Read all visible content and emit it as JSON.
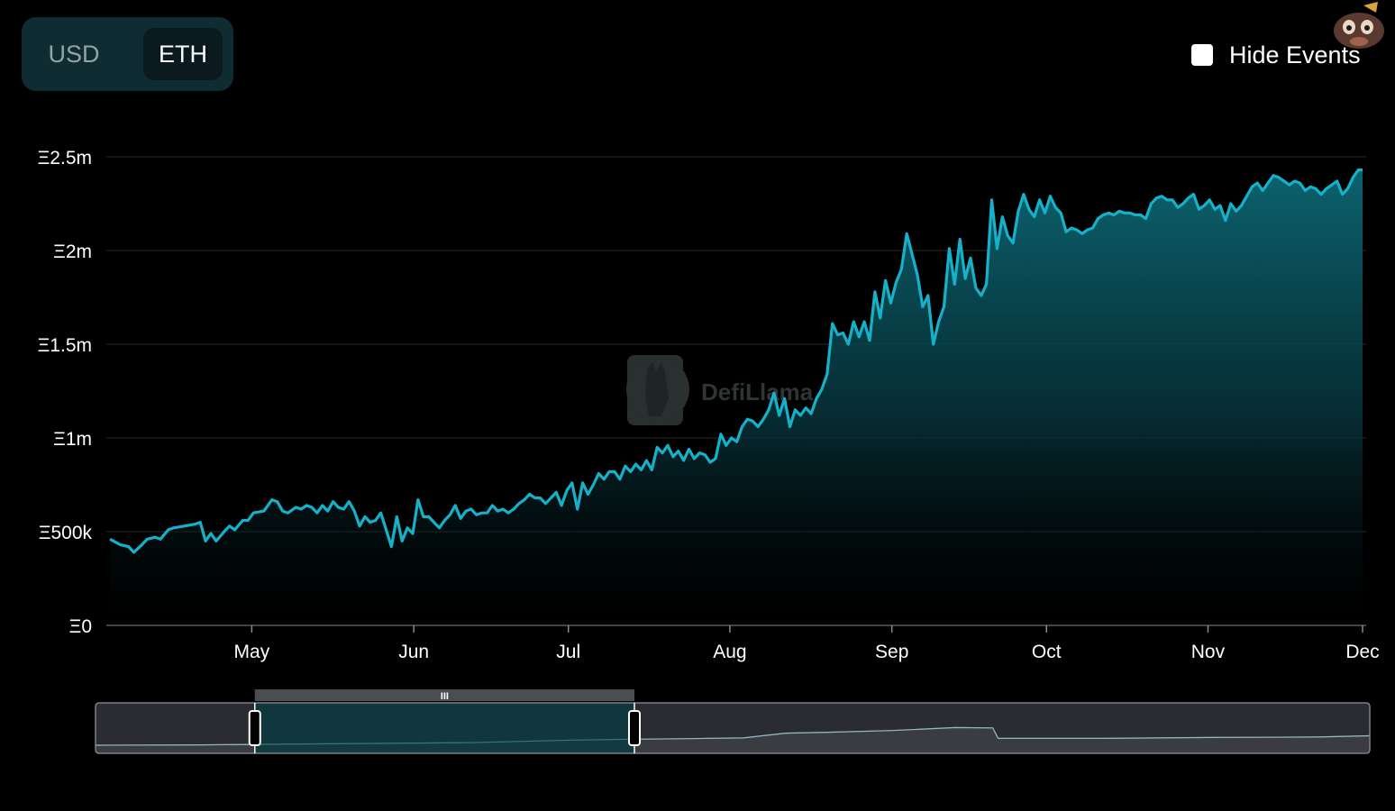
{
  "currency_toggle": {
    "options": [
      "USD",
      "ETH"
    ],
    "selected": "ETH"
  },
  "hide_events": {
    "label": "Hide Events",
    "checked": false
  },
  "watermark": "DefiLlama",
  "colors": {
    "line": "#14b1c9",
    "area_top": "#0c6874",
    "grid": "#1c1c1c",
    "toggle_bg": "#0f2c33",
    "slider_bg": "#2a2c31"
  },
  "chart_data": {
    "type": "area",
    "title": "",
    "xlabel": "",
    "ylabel": "",
    "y_ticks": [
      "Ξ0",
      "Ξ500k",
      "Ξ1m",
      "Ξ1.5m",
      "Ξ2m",
      "Ξ2.5m"
    ],
    "y_tick_values": [
      0,
      500000,
      1000000,
      1500000,
      2000000,
      2500000
    ],
    "ylim": [
      0,
      2500000
    ],
    "x_ticks": [
      "May",
      "Jun",
      "Jul",
      "Aug",
      "Sep",
      "Oct",
      "Nov",
      "Dec"
    ],
    "x_tick_days": [
      26.7,
      57.2,
      86.3,
      116.7,
      147.2,
      176.3,
      206.7,
      235.8
    ],
    "x_range_days": [
      0,
      235.8
    ],
    "grid": "horizontal",
    "series": [
      {
        "points": [
          [
            0,
            460000
          ],
          [
            2,
            430000
          ],
          [
            3.5,
            420000
          ],
          [
            4.5,
            390000
          ],
          [
            6,
            430000
          ],
          [
            7,
            460000
          ],
          [
            8.5,
            470000
          ],
          [
            9.5,
            460000
          ],
          [
            11,
            510000
          ],
          [
            12,
            520000
          ],
          [
            14,
            530000
          ],
          [
            16,
            540000
          ],
          [
            17,
            550000
          ],
          [
            18,
            450000
          ],
          [
            19,
            490000
          ],
          [
            20,
            450000
          ],
          [
            21.5,
            500000
          ],
          [
            22.5,
            530000
          ],
          [
            23.5,
            510000
          ],
          [
            25,
            560000
          ],
          [
            26,
            560000
          ],
          [
            27,
            600000
          ],
          [
            29,
            610000
          ],
          [
            30.5,
            670000
          ],
          [
            31.5,
            660000
          ],
          [
            32.5,
            610000
          ],
          [
            33.5,
            600000
          ],
          [
            35,
            630000
          ],
          [
            36,
            620000
          ],
          [
            37,
            640000
          ],
          [
            38,
            630000
          ],
          [
            39,
            600000
          ],
          [
            40,
            640000
          ],
          [
            41,
            610000
          ],
          [
            42,
            660000
          ],
          [
            43,
            630000
          ],
          [
            44,
            620000
          ],
          [
            45,
            660000
          ],
          [
            46,
            610000
          ],
          [
            47,
            530000
          ],
          [
            48,
            580000
          ],
          [
            49,
            550000
          ],
          [
            50,
            560000
          ],
          [
            51,
            600000
          ],
          [
            52,
            510000
          ],
          [
            53,
            420000
          ],
          [
            54,
            580000
          ],
          [
            55,
            450000
          ],
          [
            56,
            520000
          ],
          [
            57,
            490000
          ],
          [
            58,
            670000
          ],
          [
            59,
            580000
          ],
          [
            60,
            580000
          ],
          [
            61,
            550000
          ],
          [
            62,
            520000
          ],
          [
            63,
            560000
          ],
          [
            64,
            590000
          ],
          [
            65,
            640000
          ],
          [
            66,
            570000
          ],
          [
            67,
            610000
          ],
          [
            68,
            620000
          ],
          [
            69,
            590000
          ],
          [
            70,
            600000
          ],
          [
            71,
            600000
          ],
          [
            72,
            640000
          ],
          [
            73,
            610000
          ],
          [
            74,
            620000
          ],
          [
            75,
            600000
          ],
          [
            76,
            620000
          ],
          [
            77,
            650000
          ],
          [
            78,
            670000
          ],
          [
            79,
            700000
          ],
          [
            80,
            680000
          ],
          [
            81,
            680000
          ],
          [
            82,
            650000
          ],
          [
            83,
            680000
          ],
          [
            84,
            710000
          ],
          [
            85,
            640000
          ],
          [
            86,
            720000
          ],
          [
            87,
            760000
          ],
          [
            88,
            620000
          ],
          [
            89,
            760000
          ],
          [
            90,
            700000
          ],
          [
            91,
            750000
          ],
          [
            92,
            810000
          ],
          [
            93,
            780000
          ],
          [
            94,
            820000
          ],
          [
            95,
            820000
          ],
          [
            96,
            780000
          ],
          [
            97,
            850000
          ],
          [
            98,
            820000
          ],
          [
            99,
            860000
          ],
          [
            100,
            830000
          ],
          [
            101,
            880000
          ],
          [
            102,
            830000
          ],
          [
            103,
            950000
          ],
          [
            104,
            920000
          ],
          [
            105,
            960000
          ],
          [
            106,
            900000
          ],
          [
            107,
            930000
          ],
          [
            108,
            880000
          ],
          [
            109,
            940000
          ],
          [
            110,
            890000
          ],
          [
            111,
            920000
          ],
          [
            112,
            910000
          ],
          [
            113,
            870000
          ],
          [
            114,
            890000
          ],
          [
            115,
            1020000
          ],
          [
            116,
            960000
          ],
          [
            117,
            1000000
          ],
          [
            118,
            980000
          ],
          [
            119,
            1060000
          ],
          [
            120,
            1100000
          ],
          [
            121,
            1090000
          ],
          [
            122,
            1060000
          ],
          [
            123,
            1100000
          ],
          [
            124,
            1150000
          ],
          [
            125,
            1240000
          ],
          [
            126,
            1120000
          ],
          [
            127,
            1210000
          ],
          [
            128,
            1060000
          ],
          [
            129,
            1150000
          ],
          [
            130,
            1120000
          ],
          [
            131,
            1160000
          ],
          [
            132,
            1130000
          ],
          [
            133,
            1210000
          ],
          [
            134,
            1260000
          ],
          [
            135,
            1340000
          ],
          [
            136,
            1610000
          ],
          [
            137,
            1550000
          ],
          [
            138,
            1560000
          ],
          [
            139,
            1500000
          ],
          [
            140,
            1620000
          ],
          [
            141,
            1540000
          ],
          [
            142,
            1620000
          ],
          [
            143,
            1520000
          ],
          [
            144,
            1780000
          ],
          [
            145,
            1640000
          ],
          [
            146,
            1840000
          ],
          [
            147,
            1720000
          ],
          [
            148,
            1830000
          ],
          [
            149,
            1900000
          ],
          [
            150,
            2090000
          ],
          [
            151,
            1980000
          ],
          [
            152,
            1870000
          ],
          [
            153,
            1700000
          ],
          [
            154,
            1760000
          ],
          [
            155,
            1500000
          ],
          [
            156,
            1620000
          ],
          [
            157,
            1700000
          ],
          [
            158,
            2010000
          ],
          [
            159,
            1820000
          ],
          [
            160,
            2060000
          ],
          [
            161,
            1850000
          ],
          [
            162,
            1960000
          ],
          [
            163,
            1800000
          ],
          [
            164,
            1760000
          ],
          [
            165,
            1820000
          ],
          [
            166,
            2270000
          ],
          [
            167,
            2010000
          ],
          [
            168,
            2180000
          ],
          [
            169,
            2080000
          ],
          [
            170,
            2040000
          ],
          [
            171,
            2210000
          ],
          [
            172,
            2300000
          ],
          [
            173,
            2220000
          ],
          [
            174,
            2180000
          ],
          [
            175,
            2270000
          ],
          [
            176,
            2200000
          ],
          [
            177,
            2290000
          ],
          [
            178,
            2230000
          ],
          [
            179,
            2200000
          ],
          [
            180,
            2100000
          ],
          [
            181,
            2120000
          ],
          [
            182,
            2110000
          ],
          [
            183,
            2090000
          ],
          [
            184,
            2110000
          ],
          [
            185,
            2120000
          ],
          [
            186,
            2170000
          ],
          [
            187,
            2190000
          ],
          [
            188,
            2200000
          ],
          [
            189,
            2190000
          ],
          [
            190,
            2210000
          ],
          [
            191,
            2200000
          ],
          [
            192,
            2200000
          ],
          [
            193,
            2190000
          ],
          [
            194,
            2190000
          ],
          [
            195,
            2170000
          ],
          [
            196,
            2250000
          ],
          [
            197,
            2280000
          ],
          [
            198,
            2290000
          ],
          [
            199,
            2270000
          ],
          [
            200,
            2270000
          ],
          [
            201,
            2230000
          ],
          [
            202,
            2250000
          ],
          [
            203,
            2280000
          ],
          [
            204,
            2300000
          ],
          [
            205,
            2220000
          ],
          [
            206,
            2240000
          ],
          [
            207,
            2270000
          ],
          [
            208,
            2220000
          ],
          [
            209,
            2240000
          ],
          [
            210,
            2160000
          ],
          [
            211,
            2250000
          ],
          [
            212,
            2210000
          ],
          [
            213,
            2240000
          ],
          [
            214,
            2290000
          ],
          [
            215,
            2340000
          ],
          [
            216,
            2360000
          ],
          [
            217,
            2320000
          ],
          [
            218,
            2360000
          ],
          [
            219,
            2400000
          ],
          [
            220,
            2390000
          ],
          [
            221,
            2370000
          ],
          [
            222,
            2350000
          ],
          [
            223,
            2370000
          ],
          [
            224,
            2360000
          ],
          [
            225,
            2320000
          ],
          [
            226,
            2340000
          ],
          [
            227,
            2330000
          ],
          [
            228,
            2300000
          ],
          [
            229,
            2330000
          ],
          [
            230,
            2350000
          ],
          [
            231,
            2370000
          ],
          [
            232,
            2300000
          ],
          [
            233,
            2330000
          ],
          [
            234,
            2390000
          ],
          [
            235,
            2430000
          ],
          [
            235.8,
            2430000
          ]
        ]
      }
    ],
    "navigator": {
      "range_days": [
        -30,
        210
      ],
      "selection_days": [
        0,
        71.5
      ],
      "series": [
        [
          -30,
          0.02
        ],
        [
          -10,
          0.03
        ],
        [
          0,
          0.04
        ],
        [
          20,
          0.06
        ],
        [
          40,
          0.08
        ],
        [
          60,
          0.14
        ],
        [
          71.5,
          0.16
        ],
        [
          80,
          0.17
        ],
        [
          92,
          0.19
        ],
        [
          100,
          0.3
        ],
        [
          108,
          0.32
        ],
        [
          120,
          0.36
        ],
        [
          132,
          0.43
        ],
        [
          139,
          0.42
        ],
        [
          140,
          0.18
        ],
        [
          160,
          0.18
        ],
        [
          180,
          0.2
        ],
        [
          200,
          0.21
        ],
        [
          210,
          0.24
        ]
      ]
    }
  }
}
